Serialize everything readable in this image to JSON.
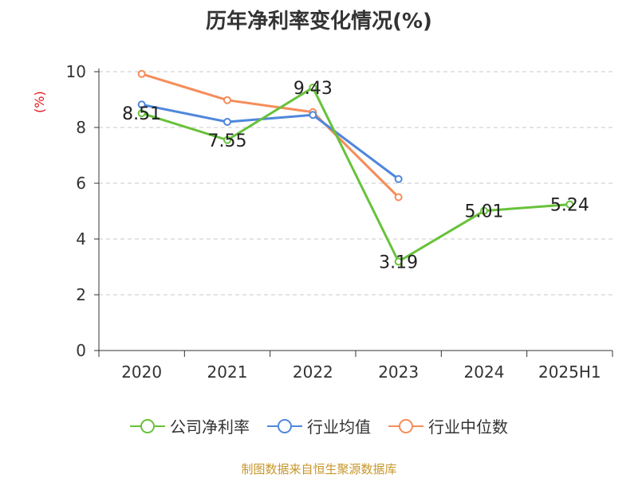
{
  "chart_data": {
    "type": "line",
    "title": "历年净利率变化情况(%)",
    "ylabel": "(%)",
    "xlabel": "",
    "categories": [
      "2020",
      "2021",
      "2022",
      "2023",
      "2024",
      "2025H1"
    ],
    "ylim": [
      0,
      10
    ],
    "yticks": [
      0,
      2,
      4,
      6,
      8,
      10
    ],
    "grid": true,
    "legend_position": "bottom",
    "series": [
      {
        "name": "公司净利率",
        "color": "#67c23a",
        "values": [
          8.51,
          7.55,
          9.43,
          3.19,
          5.01,
          5.24
        ],
        "labels": true
      },
      {
        "name": "行业均值",
        "color": "#4f87db",
        "values": [
          8.82,
          8.2,
          8.45,
          6.15,
          null,
          null
        ],
        "labels": false
      },
      {
        "name": "行业中位数",
        "color": "#f58d5b",
        "values": [
          9.92,
          8.98,
          8.55,
          5.5,
          null,
          null
        ],
        "labels": false
      }
    ]
  },
  "footer": "制图数据来自恒生聚源数据库"
}
